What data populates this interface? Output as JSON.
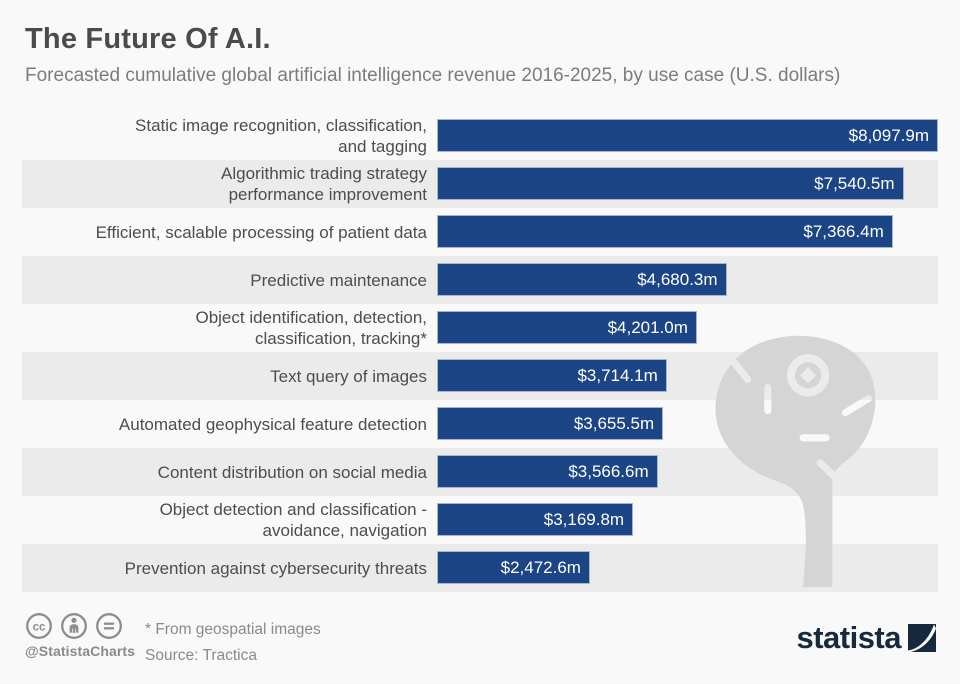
{
  "header": {
    "title": "The Future Of A.I.",
    "subtitle": "Forecasted cumulative global artificial intelligence revenue 2016-2025, by use case (U.S. dollars)"
  },
  "chart_data": {
    "type": "bar",
    "orientation": "horizontal",
    "title": "The Future Of A.I.",
    "subtitle": "Forecasted cumulative global artificial intelligence revenue 2016-2025, by use case (U.S. dollars)",
    "unit": "million U.S. dollars",
    "xlim": [
      0,
      8097.9
    ],
    "grid": false,
    "legend": false,
    "rows": [
      {
        "label": "Static image recognition, classification,\nand tagging",
        "value": 8097.9,
        "display": "$8,097.9m"
      },
      {
        "label": "Algorithmic trading strategy\nperformance improvement",
        "value": 7540.5,
        "display": "$7,540.5m"
      },
      {
        "label": "Efficient, scalable processing of patient data",
        "value": 7366.4,
        "display": "$7,366.4m"
      },
      {
        "label": "Predictive maintenance",
        "value": 4680.3,
        "display": "$4,680.3m"
      },
      {
        "label": "Object identification, detection,\nclassification, tracking*",
        "value": 4201.0,
        "display": "$4,201.0m"
      },
      {
        "label": "Text query of images",
        "value": 3714.1,
        "display": "$3,714.1m"
      },
      {
        "label": "Automated geophysical feature detection",
        "value": 3655.5,
        "display": "$3,655.5m"
      },
      {
        "label": "Content distribution on social media",
        "value": 3566.6,
        "display": "$3,566.6m"
      },
      {
        "label": "Object detection and classification -\navoidance, navigation",
        "value": 3169.8,
        "display": "$3,169.8m"
      },
      {
        "label": "Prevention against cybersecurity threats",
        "value": 2472.6,
        "display": "$2,472.6m"
      }
    ],
    "colors": {
      "bar": "#1c4585",
      "bar_border": "#a7b6cd",
      "row_stripe": "#ebebeb",
      "background": "#f9f9f9",
      "value_text": "#ffffff",
      "watermark": "#d5d5d5"
    }
  },
  "footer": {
    "note": "* From geospatial images",
    "source": "Source: Tractica",
    "credit": "@StatistaCharts",
    "license_icons": [
      "cc",
      "attribution",
      "equals"
    ],
    "brand_text": "statista",
    "brand_color": "#16293d"
  }
}
